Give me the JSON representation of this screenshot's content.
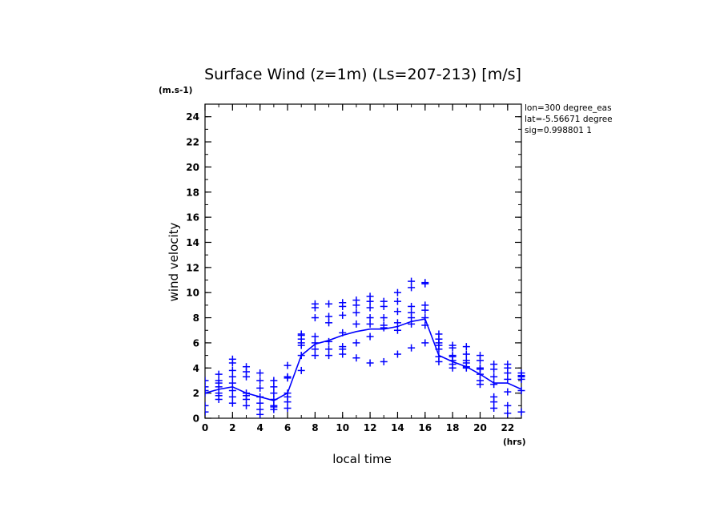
{
  "chart_data": {
    "type": "scatter",
    "title": "Surface Wind (z=1m) (Ls=207-213) [m/s]",
    "y_unit": "(m.s-1)",
    "x_unit": "(hrs)",
    "xlabel": "local time",
    "ylabel": "wind velocity",
    "info_lines": [
      "lon=300 degree_eas",
      "lat=-5.56671 degree",
      "sig=0.998801 1"
    ],
    "xlim": [
      0,
      23
    ],
    "ylim": [
      0,
      25
    ],
    "x_ticks": [
      "0",
      "2",
      "4",
      "6",
      "8",
      "10",
      "12",
      "14",
      "16",
      "18",
      "20",
      "22"
    ],
    "y_ticks": [
      "0",
      "2",
      "4",
      "6",
      "8",
      "10",
      "12",
      "14",
      "16",
      "18",
      "20",
      "22",
      "24"
    ],
    "grid": false,
    "color": "#0000ff",
    "series": [
      {
        "type": "line",
        "points": [
          [
            0,
            2.0
          ],
          [
            1,
            2.3
          ],
          [
            2,
            2.5
          ],
          [
            3,
            2.0
          ],
          [
            4,
            1.7
          ],
          [
            5,
            1.4
          ],
          [
            6,
            2.0
          ],
          [
            7,
            5.0
          ],
          [
            8,
            5.9
          ],
          [
            9,
            6.2
          ],
          [
            10,
            6.6
          ],
          [
            11,
            6.9
          ],
          [
            12,
            7.1
          ],
          [
            13,
            7.1
          ],
          [
            14,
            7.3
          ],
          [
            15,
            7.7
          ],
          [
            16,
            7.9
          ],
          [
            17,
            5.0
          ],
          [
            18,
            4.5
          ],
          [
            19,
            4.1
          ],
          [
            20,
            3.5
          ],
          [
            21,
            2.8
          ],
          [
            22,
            2.8
          ],
          [
            23,
            2.3
          ]
        ]
      },
      {
        "type": "scatter",
        "points": [
          [
            0,
            2.0
          ],
          [
            0,
            2.5
          ],
          [
            0,
            3.0
          ],
          [
            0,
            1.0
          ],
          [
            0,
            0.5
          ],
          [
            0,
            2.2
          ],
          [
            1,
            1.5
          ],
          [
            1,
            2.0
          ],
          [
            1,
            2.5
          ],
          [
            1,
            3.0
          ],
          [
            1,
            3.5
          ],
          [
            1,
            1.8
          ],
          [
            1,
            2.8
          ],
          [
            2,
            1.2
          ],
          [
            2,
            1.7
          ],
          [
            2,
            2.2
          ],
          [
            2,
            2.8
          ],
          [
            2,
            3.3
          ],
          [
            2,
            3.8
          ],
          [
            2,
            4.4
          ],
          [
            2,
            4.7
          ],
          [
            3,
            1.0
          ],
          [
            3,
            1.5
          ],
          [
            3,
            1.8
          ],
          [
            3,
            2.0
          ],
          [
            3,
            3.3
          ],
          [
            3,
            3.7
          ],
          [
            3,
            4.1
          ],
          [
            4,
            0.3
          ],
          [
            4,
            0.7
          ],
          [
            4,
            1.2
          ],
          [
            4,
            1.7
          ],
          [
            4,
            2.4
          ],
          [
            4,
            3.0
          ],
          [
            4,
            3.6
          ],
          [
            5,
            0.7
          ],
          [
            5,
            0.9
          ],
          [
            5,
            1.0
          ],
          [
            5,
            1.5
          ],
          [
            5,
            2.0
          ],
          [
            5,
            2.5
          ],
          [
            5,
            3.0
          ],
          [
            6,
            0.8
          ],
          [
            6,
            1.3
          ],
          [
            6,
            1.7
          ],
          [
            6,
            2.0
          ],
          [
            6,
            3.2
          ],
          [
            6,
            3.3
          ],
          [
            6,
            4.2
          ],
          [
            7,
            3.8
          ],
          [
            7,
            5.0
          ],
          [
            7,
            5.8
          ],
          [
            7,
            6.0
          ],
          [
            7,
            6.3
          ],
          [
            7,
            6.6
          ],
          [
            7,
            6.7
          ],
          [
            8,
            5.0
          ],
          [
            8,
            5.5
          ],
          [
            8,
            6.0
          ],
          [
            8,
            6.5
          ],
          [
            8,
            8.0
          ],
          [
            8,
            8.8
          ],
          [
            8,
            9.1
          ],
          [
            9,
            5.0
          ],
          [
            9,
            5.5
          ],
          [
            9,
            6.1
          ],
          [
            9,
            7.6
          ],
          [
            9,
            8.1
          ],
          [
            9,
            9.1
          ],
          [
            10,
            5.1
          ],
          [
            10,
            5.5
          ],
          [
            10,
            5.7
          ],
          [
            10,
            6.8
          ],
          [
            10,
            8.2
          ],
          [
            10,
            8.9
          ],
          [
            10,
            9.2
          ],
          [
            11,
            4.8
          ],
          [
            11,
            6.0
          ],
          [
            11,
            7.5
          ],
          [
            11,
            8.4
          ],
          [
            11,
            9.0
          ],
          [
            11,
            9.4
          ],
          [
            12,
            4.4
          ],
          [
            12,
            6.5
          ],
          [
            12,
            7.5
          ],
          [
            12,
            8.0
          ],
          [
            12,
            8.8
          ],
          [
            12,
            9.3
          ],
          [
            12,
            9.7
          ],
          [
            13,
            4.5
          ],
          [
            13,
            7.2
          ],
          [
            13,
            7.4
          ],
          [
            13,
            8.0
          ],
          [
            13,
            8.9
          ],
          [
            13,
            9.3
          ],
          [
            14,
            5.1
          ],
          [
            14,
            7.0
          ],
          [
            14,
            7.6
          ],
          [
            14,
            8.5
          ],
          [
            14,
            9.3
          ],
          [
            14,
            10.0
          ],
          [
            15,
            5.6
          ],
          [
            15,
            7.5
          ],
          [
            15,
            8.0
          ],
          [
            15,
            8.4
          ],
          [
            15,
            8.9
          ],
          [
            15,
            10.4
          ],
          [
            15,
            10.9
          ],
          [
            16,
            6.0
          ],
          [
            16,
            7.4
          ],
          [
            16,
            8.0
          ],
          [
            16,
            8.6
          ],
          [
            16,
            9.0
          ],
          [
            16,
            10.7
          ],
          [
            16,
            10.8
          ],
          [
            17,
            4.5
          ],
          [
            17,
            4.9
          ],
          [
            17,
            5.5
          ],
          [
            17,
            5.8
          ],
          [
            17,
            6.0
          ],
          [
            17,
            6.3
          ],
          [
            17,
            6.7
          ],
          [
            18,
            4.0
          ],
          [
            18,
            4.3
          ],
          [
            18,
            4.6
          ],
          [
            18,
            4.9
          ],
          [
            18,
            5.0
          ],
          [
            18,
            5.6
          ],
          [
            18,
            5.8
          ],
          [
            19,
            4.0
          ],
          [
            19,
            4.1
          ],
          [
            19,
            4.4
          ],
          [
            19,
            4.6
          ],
          [
            19,
            5.1
          ],
          [
            19,
            5.7
          ],
          [
            20,
            2.7
          ],
          [
            20,
            3.0
          ],
          [
            20,
            3.5
          ],
          [
            20,
            3.9
          ],
          [
            20,
            4.0
          ],
          [
            20,
            4.6
          ],
          [
            20,
            5.0
          ],
          [
            21,
            0.8
          ],
          [
            21,
            1.3
          ],
          [
            21,
            1.7
          ],
          [
            21,
            2.7
          ],
          [
            21,
            3.3
          ],
          [
            21,
            3.9
          ],
          [
            21,
            4.3
          ],
          [
            22,
            0.4
          ],
          [
            22,
            1.0
          ],
          [
            22,
            2.1
          ],
          [
            22,
            3.1
          ],
          [
            22,
            3.6
          ],
          [
            22,
            4.0
          ],
          [
            22,
            4.3
          ],
          [
            23,
            0.5
          ],
          [
            23,
            2.2
          ],
          [
            23,
            3.1
          ],
          [
            23,
            3.3
          ],
          [
            23,
            3.4
          ],
          [
            23,
            3.6
          ]
        ]
      }
    ]
  }
}
